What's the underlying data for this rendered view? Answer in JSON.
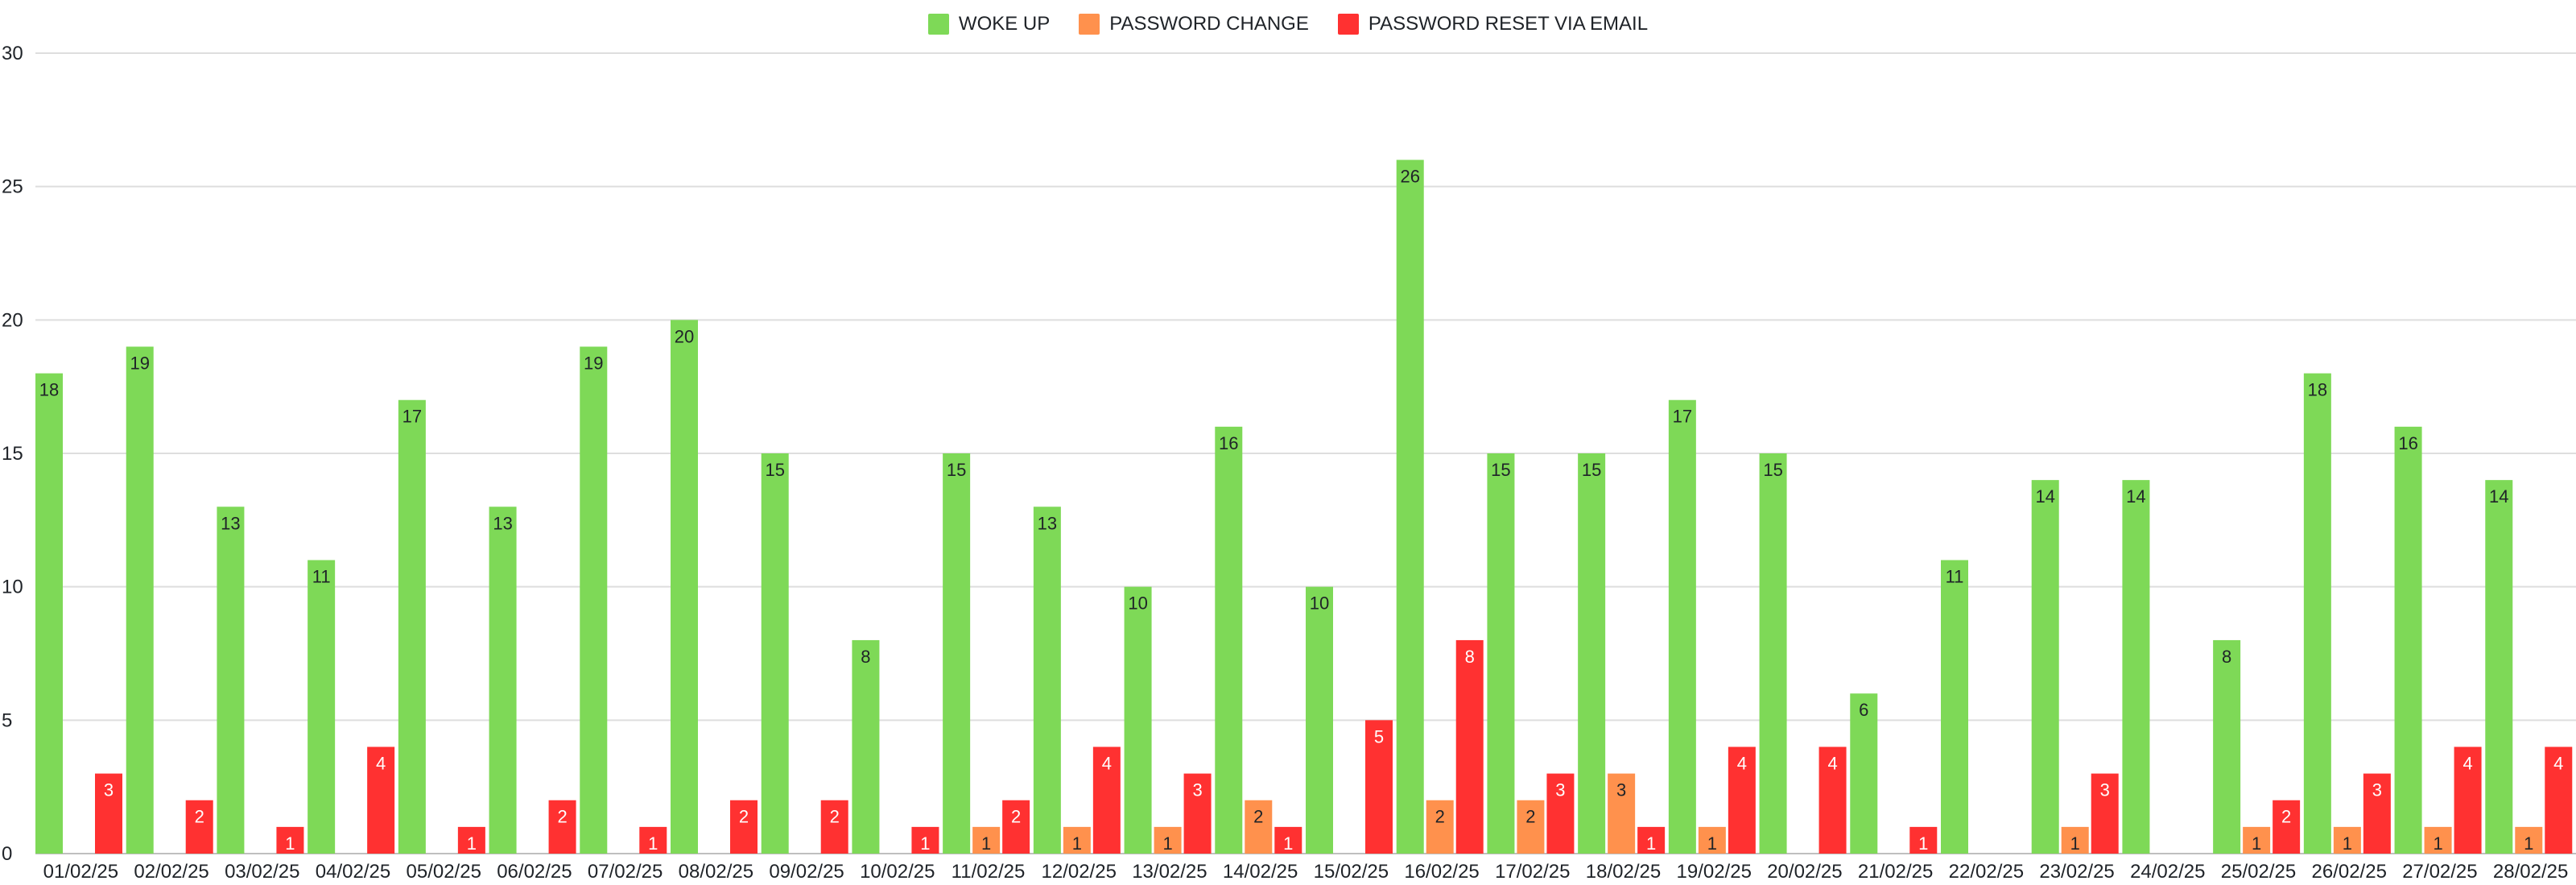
{
  "chart_data": {
    "type": "bar",
    "categories": [
      "01/02/25",
      "02/02/25",
      "03/02/25",
      "04/02/25",
      "05/02/25",
      "06/02/25",
      "07/02/25",
      "08/02/25",
      "09/02/25",
      "10/02/25",
      "11/02/25",
      "12/02/25",
      "13/02/25",
      "14/02/25",
      "15/02/25",
      "16/02/25",
      "17/02/25",
      "18/02/25",
      "19/02/25",
      "20/02/25",
      "21/02/25",
      "22/02/25",
      "23/02/25",
      "24/02/25",
      "25/02/25",
      "26/02/25",
      "27/02/25",
      "28/02/25"
    ],
    "series": [
      {
        "name": "WOKE UP",
        "color": "#7ed957",
        "values": [
          18,
          19,
          13,
          11,
          17,
          13,
          19,
          20,
          15,
          8,
          15,
          13,
          10,
          16,
          10,
          26,
          15,
          15,
          17,
          15,
          6,
          11,
          14,
          14,
          8,
          18,
          16,
          14
        ]
      },
      {
        "name": "PASSWORD CHANGE",
        "color": "#ff914d",
        "values": [
          0,
          0,
          0,
          0,
          0,
          0,
          0,
          0,
          0,
          0,
          1,
          1,
          1,
          2,
          0,
          2,
          2,
          3,
          1,
          0,
          0,
          0,
          1,
          0,
          1,
          1,
          1,
          1
        ]
      },
      {
        "name": "PASSWORD RESET VIA EMAIL",
        "color": "#ff3131",
        "values": [
          3,
          2,
          1,
          4,
          1,
          2,
          1,
          2,
          2,
          1,
          2,
          4,
          3,
          1,
          5,
          8,
          3,
          1,
          4,
          4,
          1,
          0,
          3,
          0,
          2,
          3,
          4,
          4
        ]
      }
    ],
    "ylim": [
      0,
      30
    ],
    "yticks": [
      0,
      5,
      10,
      15,
      20,
      25,
      30
    ],
    "legend_position": "top-center",
    "grid": true,
    "data_labels": true
  }
}
